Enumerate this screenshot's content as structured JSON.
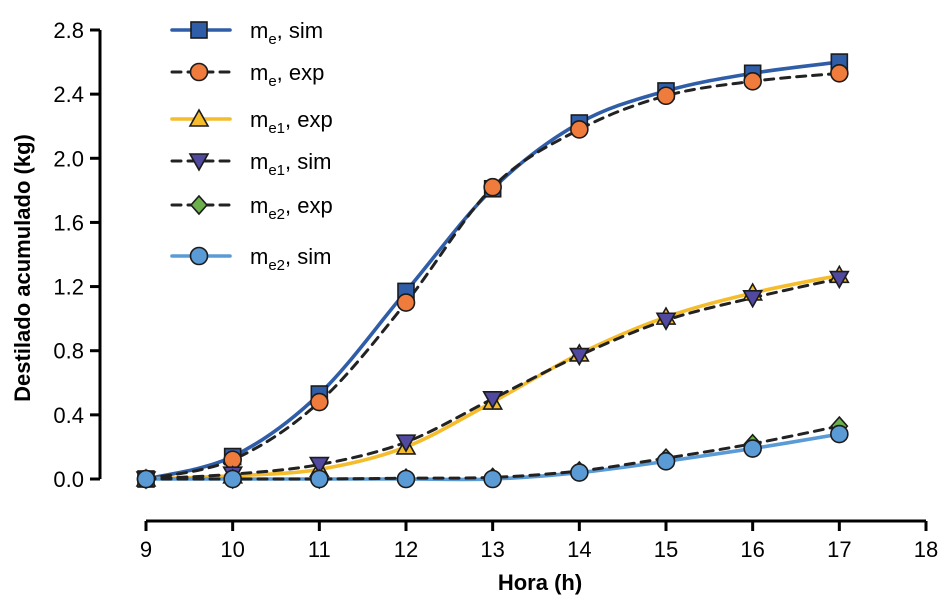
{
  "chart_data": {
    "type": "line",
    "title": "",
    "xlabel": "Hora (h)",
    "ylabel": "Destilado acumulado (kg)",
    "xlim": [
      9,
      18
    ],
    "ylim": [
      0,
      2.8
    ],
    "xticks": [
      9,
      10,
      11,
      12,
      13,
      14,
      15,
      16,
      17,
      18
    ],
    "xtick_labels": [
      "9",
      "10",
      "11",
      "12",
      "13",
      "14",
      "15",
      "16",
      "17",
      "18"
    ],
    "yticks": [
      0,
      0.4,
      0.8,
      1.2,
      1.6,
      2.0,
      2.4,
      2.8
    ],
    "ytick_labels": [
      "0.0",
      "0.4",
      "0.8",
      "1.2",
      "1.6",
      "2.0",
      "2.4",
      "2.8"
    ],
    "grid": false,
    "legend_position": "top-left",
    "x": [
      9,
      10,
      11,
      12,
      13,
      14,
      15,
      16,
      17
    ],
    "series": [
      {
        "name": "me, sim",
        "label_main": "m",
        "label_sub": "e",
        "label_rest": ", sim",
        "values": [
          0.0,
          0.14,
          0.53,
          1.17,
          1.81,
          2.22,
          2.42,
          2.53,
          2.6
        ],
        "line_color": "#2f5da8",
        "dashed": false,
        "marker": "square",
        "marker_color": "#2f5da8"
      },
      {
        "name": "me, exp",
        "label_main": "m",
        "label_sub": "e",
        "label_rest": ", exp",
        "values": [
          0.0,
          0.12,
          0.48,
          1.1,
          1.82,
          2.18,
          2.39,
          2.48,
          2.53
        ],
        "line_color": "#222222",
        "dashed": true,
        "marker": "circle",
        "marker_color": "#ef7b3d"
      },
      {
        "name": "me1, exp",
        "label_main": "m",
        "label_sub": "e1",
        "label_rest": ", exp",
        "values": [
          0.0,
          0.02,
          0.06,
          0.2,
          0.48,
          0.78,
          1.01,
          1.16,
          1.27
        ],
        "line_color": "#f5bc2c",
        "dashed": false,
        "marker": "triangle-up",
        "marker_color": "#f5bc2c"
      },
      {
        "name": "me1, sim",
        "label_main": "m",
        "label_sub": "e1",
        "label_rest": ", sim",
        "values": [
          0.0,
          0.03,
          0.09,
          0.23,
          0.5,
          0.77,
          0.99,
          1.13,
          1.25
        ],
        "line_color": "#222222",
        "dashed": true,
        "marker": "triangle-down",
        "marker_color": "#5148a0"
      },
      {
        "name": "me2, exp",
        "label_main": "m",
        "label_sub": "e2",
        "label_rest": ", exp",
        "values": [
          0.0,
          0.0,
          0.0,
          0.005,
          0.01,
          0.05,
          0.13,
          0.22,
          0.33
        ],
        "line_color": "#222222",
        "dashed": true,
        "marker": "diamond",
        "marker_color": "#6bb04a"
      },
      {
        "name": "me2, sim",
        "label_main": "m",
        "label_sub": "e2",
        "label_rest": ", sim",
        "values": [
          0.0,
          0.0,
          0.0,
          0.0,
          0.0,
          0.04,
          0.11,
          0.19,
          0.28
        ],
        "line_color": "#5b9bd5",
        "dashed": false,
        "marker": "circle",
        "marker_color": "#5b9bd5"
      }
    ]
  }
}
